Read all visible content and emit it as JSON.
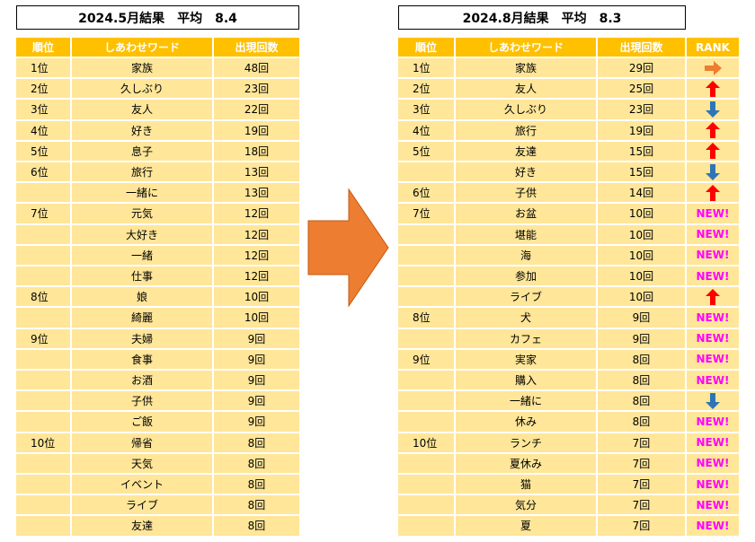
{
  "left": {
    "title": "2024.5月結果　平均　8.4",
    "headers": [
      "順位",
      "しあわせワード",
      "出現回数"
    ],
    "rows": [
      {
        "rank": "1位",
        "word": "家族",
        "count": "48回"
      },
      {
        "rank": "2位",
        "word": "久しぶり",
        "count": "23回"
      },
      {
        "rank": "3位",
        "word": "友人",
        "count": "22回"
      },
      {
        "rank": "4位",
        "word": "好き",
        "count": "19回"
      },
      {
        "rank": "5位",
        "word": "息子",
        "count": "18回"
      },
      {
        "rank": "6位",
        "word": "旅行",
        "count": "13回"
      },
      {
        "word": "一緒に",
        "count": "13回"
      },
      {
        "rank": "7位",
        "word": "元気",
        "count": "12回"
      },
      {
        "word": "大好き",
        "count": "12回"
      },
      {
        "word": "一緒",
        "count": "12回"
      },
      {
        "word": "仕事",
        "count": "12回"
      },
      {
        "rank": "8位",
        "word": "娘",
        "count": "10回"
      },
      {
        "word": "綺麗",
        "count": "10回"
      },
      {
        "rank": "9位",
        "word": "夫婦",
        "count": "9回"
      },
      {
        "word": "食事",
        "count": "9回"
      },
      {
        "word": "お酒",
        "count": "9回"
      },
      {
        "word": "子供",
        "count": "9回"
      },
      {
        "word": "ご飯",
        "count": "9回"
      },
      {
        "rank": "10位",
        "word": "帰省",
        "count": "8回"
      },
      {
        "word": "天気",
        "count": "8回"
      },
      {
        "word": "イベント",
        "count": "8回"
      },
      {
        "word": "ライブ",
        "count": "8回"
      },
      {
        "word": "友達",
        "count": "8回"
      }
    ]
  },
  "right": {
    "title": "2024.8月結果　平均　8.3",
    "headers": [
      "順位",
      "しあわせワード",
      "出現回数",
      "RANK"
    ],
    "rows": [
      {
        "rank": "1位",
        "word": "家族",
        "count": "29回"
      },
      {
        "rank": "2位",
        "word": "友人",
        "count": "25回"
      },
      {
        "rank": "3位",
        "word": "久しぶり",
        "count": "23回"
      },
      {
        "rank": "4位",
        "word": "旅行",
        "count": "19回"
      },
      {
        "rank": "5位",
        "word": "友達",
        "count": "15回"
      },
      {
        "word": "好き",
        "count": "15回"
      },
      {
        "rank": "6位",
        "word": "子供",
        "count": "14回"
      },
      {
        "rank": "7位",
        "word": "お盆",
        "count": "10回",
        "status": "NEW!"
      },
      {
        "word": "堪能",
        "count": "10回",
        "status": "NEW!"
      },
      {
        "word": "海",
        "count": "10回",
        "status": "NEW!"
      },
      {
        "word": "参加",
        "count": "10回",
        "status": "NEW!"
      },
      {
        "word": "ライブ",
        "count": "10回"
      },
      {
        "rank": "8位",
        "word": "犬",
        "count": "9回",
        "status": "NEW!"
      },
      {
        "word": "カフェ",
        "count": "9回",
        "status": "NEW!"
      },
      {
        "rank": "9位",
        "word": "実家",
        "count": "8回",
        "status": "NEW!"
      },
      {
        "word": "購入",
        "count": "8回",
        "status": "NEW!"
      },
      {
        "word": "一緒に",
        "count": "8回"
      },
      {
        "word": "休み",
        "count": "8回",
        "status": "NEW!"
      },
      {
        "rank": "10位",
        "word": "ランチ",
        "count": "7回",
        "status": "NEW!"
      },
      {
        "word": "夏休み",
        "count": "7回",
        "status": "NEW!"
      },
      {
        "word": "猫",
        "count": "7回",
        "status": "NEW!"
      },
      {
        "word": "気分",
        "count": "7回",
        "status": "NEW!"
      },
      {
        "word": "夏",
        "count": "7回",
        "status": "NEW!"
      }
    ]
  }
}
